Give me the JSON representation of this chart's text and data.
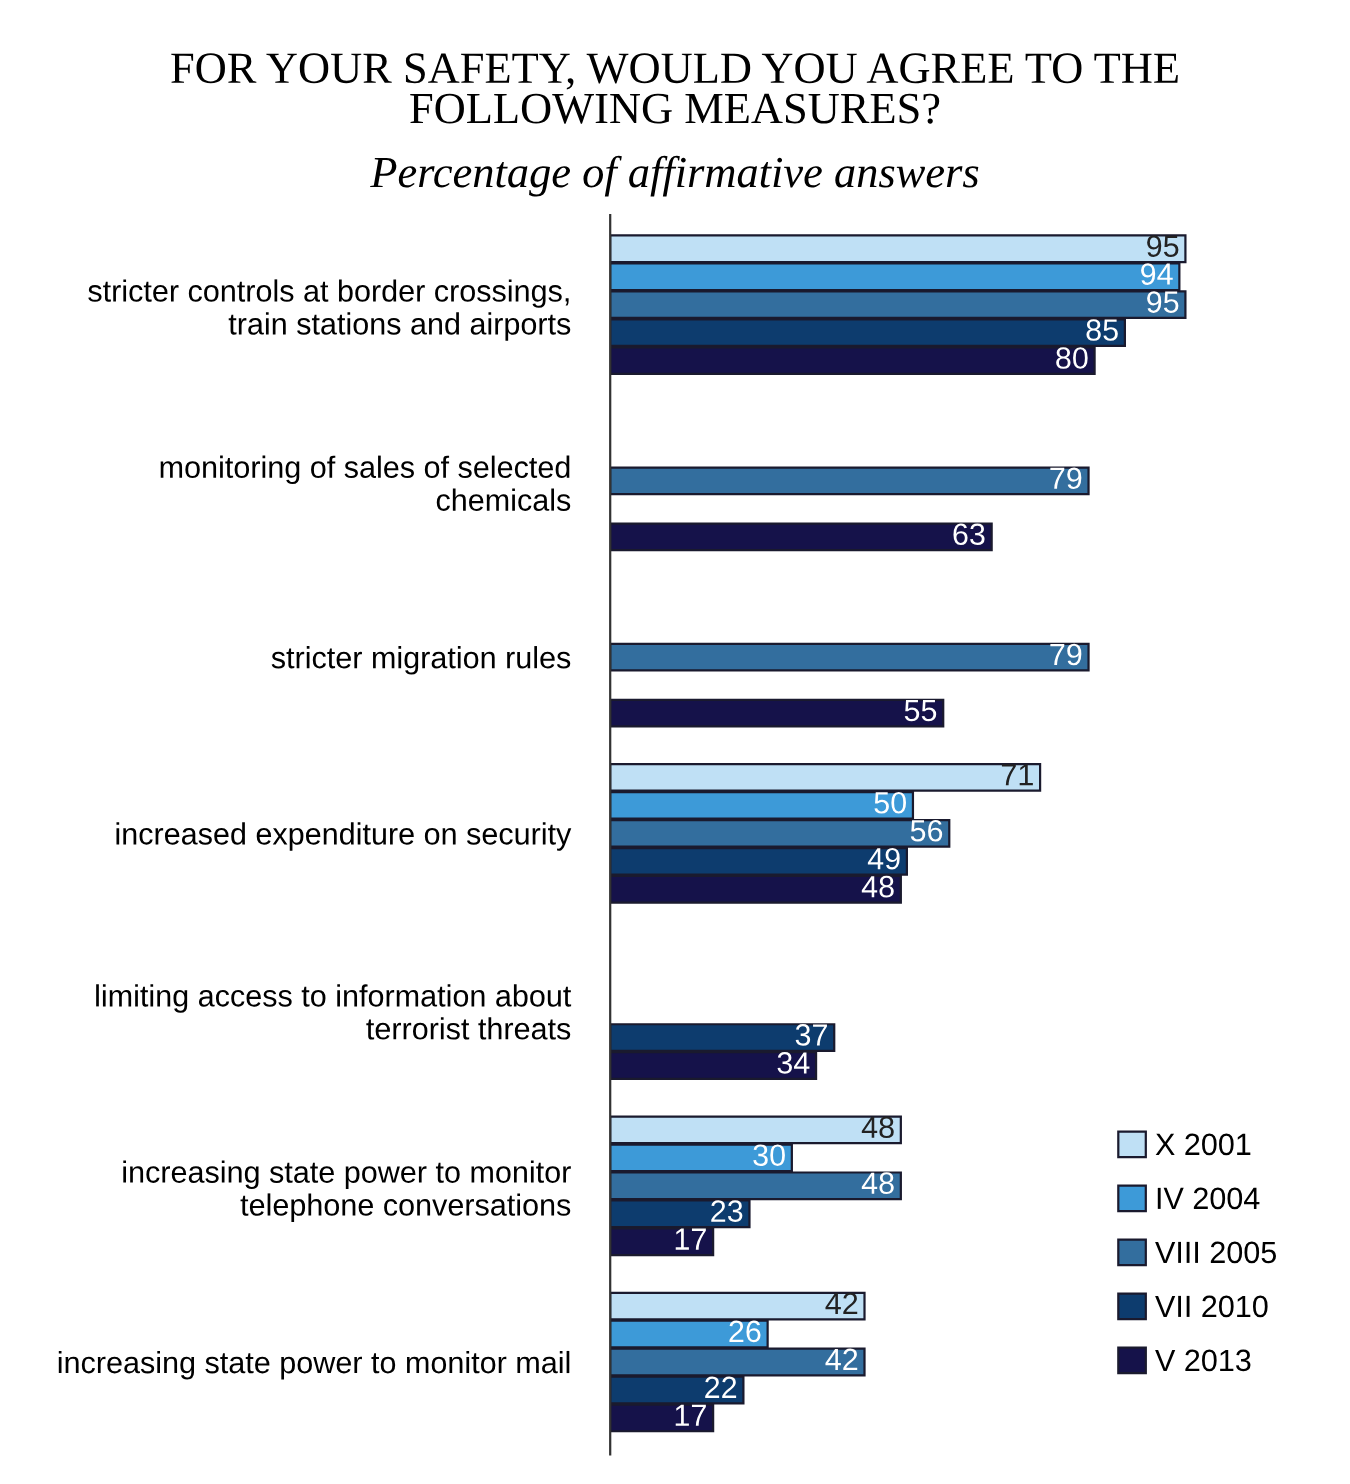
{
  "chart_data": {
    "type": "bar",
    "orientation": "horizontal",
    "title": "FOR YOUR SAFETY, WOULD YOU AGREE TO THE\nFOLLOWING MEASURES?",
    "subtitle": "Percentage of affirmative answers",
    "categories": [
      "stricter controls at border crossings,\ntrain stations and airports",
      "monitoring of sales of selected\nchemicals",
      "stricter migration rules",
      "increased expenditure on security",
      "limiting access to information about\nterrorist threats",
      "increasing state power to monitor\ntelephone conversations",
      "increasing state power to monitor mail"
    ],
    "series": [
      {
        "name": "X 2001",
        "color": "#bfe0f5",
        "values": [
          95,
          null,
          null,
          71,
          null,
          48,
          42
        ]
      },
      {
        "name": "IV 2004",
        "color": "#3d9ad8",
        "values": [
          94,
          null,
          null,
          50,
          null,
          30,
          26
        ]
      },
      {
        "name": "VIII 2005",
        "color": "#336e9e",
        "values": [
          95,
          79,
          79,
          56,
          null,
          48,
          42
        ]
      },
      {
        "name": "VII 2010",
        "color": "#0d3c6e",
        "values": [
          85,
          null,
          null,
          49,
          37,
          23,
          22
        ]
      },
      {
        "name": "V 2013",
        "color": "#15124a",
        "values": [
          80,
          63,
          55,
          48,
          34,
          17,
          17
        ]
      }
    ],
    "data_labels": true,
    "legend": "bottom right",
    "grid": false
  }
}
